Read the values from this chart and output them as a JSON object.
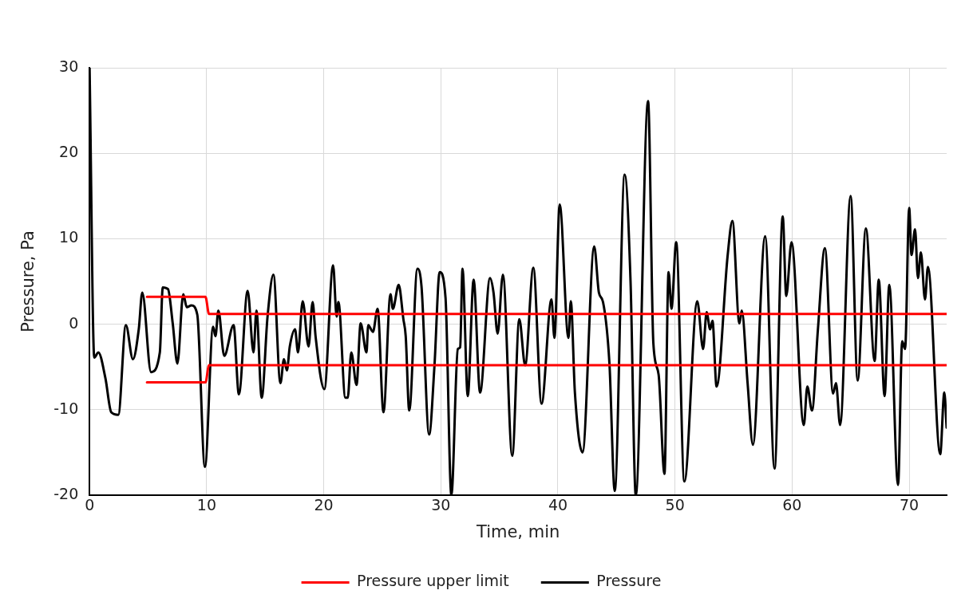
{
  "chart_data": {
    "type": "line",
    "xlabel": "Time, min",
    "ylabel": "Pressure, Pa",
    "xlim": [
      0,
      73.2
    ],
    "xticks": [
      0,
      10,
      20,
      30,
      40,
      50,
      60,
      70
    ],
    "ylim": [
      -20,
      30
    ],
    "yticks": [
      -20,
      -10,
      0,
      10,
      20,
      30
    ],
    "grid": true,
    "legend": "bottom",
    "marker": "none",
    "line_style": "solid",
    "series": [
      {
        "name": "Pressure upper limit",
        "color": "#ff0000",
        "x": [
          4.9,
          9.9,
          10.2,
          73.2
        ],
        "values": [
          3.2,
          3.2,
          1.2,
          1.2
        ]
      },
      {
        "color": "#ff0000",
        "x": [
          4.9,
          9.9,
          10.2,
          73.2
        ],
        "values": [
          -6.8,
          -6.8,
          -4.8,
          -4.8
        ]
      },
      {
        "name": "Pressure",
        "color": "#000000",
        "x": [
          0,
          0.4,
          0.75,
          1.35,
          1.85,
          2.45,
          3.1,
          3.7,
          4.2,
          4.5,
          5.25,
          6.0,
          6.25,
          6.7,
          7.1,
          7.5,
          8.0,
          8.3,
          8.7,
          9.2,
          9.85,
          10.55,
          10.75,
          11.0,
          11.5,
          12.3,
          12.75,
          13.5,
          14.0,
          14.25,
          14.7,
          15.2,
          15.7,
          16.3,
          16.6,
          16.85,
          17.1,
          17.55,
          17.8,
          18.2,
          18.7,
          19.05,
          19.3,
          20.05,
          20.8,
          21.1,
          21.25,
          21.85,
          22.05,
          22.35,
          22.8,
          23.15,
          23.65,
          23.8,
          24.2,
          24.6,
          25.1,
          25.7,
          25.9,
          26.4,
          26.8,
          27.0,
          27.3,
          28.0,
          28.35,
          29.0,
          29.45,
          29.9,
          30.4,
          30.9,
          31.45,
          31.65,
          31.85,
          32.3,
          32.8,
          33.35,
          34.2,
          34.5,
          34.85,
          35.3,
          36.1,
          36.7,
          37.2,
          37.9,
          38.6,
          39.45,
          39.7,
          40.15,
          40.9,
          41.1,
          41.45,
          42.1,
          43.1,
          43.5,
          43.85,
          44.4,
          44.85,
          45.7,
          46.2,
          46.65,
          47.7,
          48.15,
          48.6,
          49.1,
          49.45,
          49.7,
          50.1,
          50.8,
          51.9,
          52.4,
          52.7,
          53.0,
          53.2,
          53.55,
          54.5,
          54.9,
          55.5,
          55.7,
          56.2,
          56.65,
          57.7,
          58.5,
          59.2,
          59.5,
          59.95,
          61.0,
          61.3,
          61.7,
          62.2,
          62.8,
          63.5,
          63.75,
          64.1,
          65.0,
          65.6,
          66.3,
          67.05,
          67.4,
          67.9,
          68.3,
          69.05,
          69.4,
          69.65,
          70.0,
          70.2,
          70.5,
          70.75,
          71.0,
          71.35,
          71.6,
          72.65,
          73.0,
          73.2
        ],
        "values": [
          30,
          -3.9,
          -3.3,
          -6.3,
          -10.3,
          -10.6,
          -0.1,
          -4.1,
          -0.6,
          3.7,
          -5.6,
          -3.3,
          4.3,
          4.1,
          0.1,
          -4.6,
          3.5,
          2.0,
          2.2,
          1.1,
          -16.7,
          -0.3,
          -1.4,
          1.6,
          -3.7,
          -0.1,
          -8.2,
          3.9,
          -3.3,
          1.6,
          -8.6,
          0.9,
          5.8,
          -6.9,
          -4.1,
          -5.4,
          -2.6,
          -0.6,
          -3.3,
          2.7,
          -2.6,
          2.6,
          -1.4,
          -7.6,
          6.9,
          0.9,
          2.6,
          -8.6,
          -8.6,
          -3.3,
          -7.1,
          0.1,
          -3.3,
          -0.1,
          -0.9,
          1.8,
          -10.3,
          3.5,
          1.8,
          4.6,
          0.6,
          -1.4,
          -10.1,
          6.5,
          4.4,
          -12.9,
          -5.0,
          6.1,
          3.1,
          -20,
          -2.9,
          -2.7,
          6.5,
          -8.4,
          5.2,
          -8.0,
          5.4,
          3.7,
          -1.1,
          5.8,
          -15.4,
          0.6,
          -4.8,
          6.6,
          -9.3,
          2.9,
          -1.6,
          14.0,
          -1.6,
          2.7,
          -8.0,
          -15.0,
          9.1,
          3.7,
          2.6,
          -4.6,
          -19.5,
          17.5,
          5.1,
          -20,
          26.1,
          -2.2,
          -5.9,
          -17.5,
          6.1,
          1.8,
          9.6,
          -18.4,
          2.7,
          -2.9,
          1.4,
          -0.6,
          0.4,
          -7.3,
          8.1,
          12.1,
          0.1,
          1.6,
          -6.9,
          -14.1,
          10.3,
          -16.9,
          12.6,
          3.3,
          9.6,
          -11.8,
          -7.3,
          -10.1,
          -0.7,
          8.9,
          -8.1,
          -6.9,
          -11.8,
          15.0,
          -6.6,
          11.2,
          -4.3,
          5.2,
          -8.4,
          4.6,
          -18.8,
          -2.0,
          -2.9,
          13.6,
          8.1,
          11.1,
          5.4,
          8.4,
          2.9,
          6.7,
          -15.2,
          -8.0,
          -12.1
        ]
      }
    ]
  }
}
